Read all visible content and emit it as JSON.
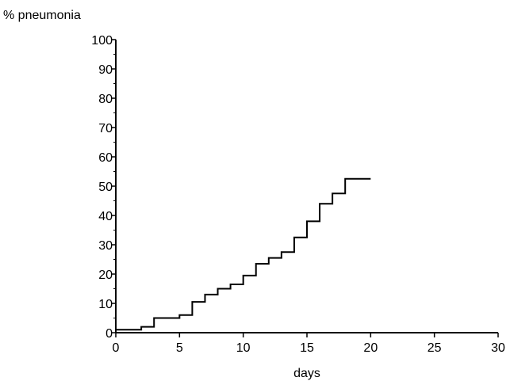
{
  "chart_data": {
    "type": "line",
    "step": true,
    "title": "",
    "xlabel": "days",
    "ylabel": "% pneumonia",
    "xlim": [
      0,
      30
    ],
    "ylim": [
      0,
      100
    ],
    "x_ticks": [
      0,
      5,
      10,
      15,
      20,
      25,
      30
    ],
    "y_ticks": [
      0,
      10,
      20,
      30,
      40,
      50,
      60,
      70,
      80,
      90,
      100
    ],
    "x_tick_labels": [
      "0",
      "5",
      "10",
      "15",
      "20",
      "25",
      "30"
    ],
    "y_tick_labels": [
      "0",
      "10",
      "20",
      "30",
      "40",
      "50",
      "60",
      "70",
      "80",
      "90",
      "100"
    ],
    "grid": false,
    "legend": "none",
    "line_color": "#000000",
    "series": [
      {
        "x": [
          0,
          2,
          3,
          5,
          6,
          7,
          8,
          9,
          10,
          11,
          12,
          13,
          14,
          15,
          16,
          17,
          18,
          20
        ],
        "y": [
          1,
          2,
          5,
          6,
          10.5,
          13,
          15,
          16.5,
          19.5,
          23.5,
          25.5,
          27.5,
          32.5,
          38,
          44,
          47.5,
          52.5,
          52.5
        ]
      }
    ]
  }
}
